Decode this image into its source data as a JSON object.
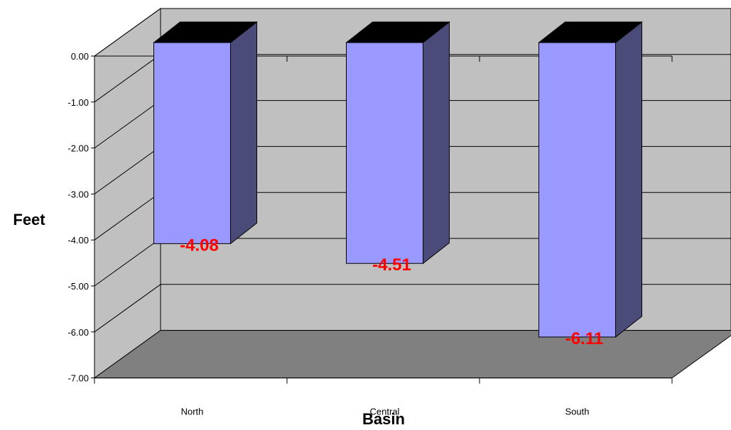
{
  "colors": {
    "plot_back": "#c0c0c0",
    "floor": "#808080",
    "bar_front": "#9999ff",
    "bar_side": "#4b4b7a",
    "bar_top": "#000000",
    "data_label": "#ff0000"
  },
  "chart_data": {
    "type": "bar",
    "style": "3d-column",
    "categories": [
      "North",
      "Central",
      "South"
    ],
    "series": [
      {
        "values": [
          -4.08,
          -4.51,
          -6.11
        ]
      }
    ],
    "data_labels": [
      "-4.08",
      "-4.51",
      "-6.11"
    ],
    "y_ticks": [
      "0.00",
      "-1.00",
      "-2.00",
      "-3.00",
      "-4.00",
      "-5.00",
      "-6.00",
      "-7.00"
    ],
    "title": "",
    "xlabel": "Basin",
    "ylabel": "Feet",
    "ylim": [
      -7,
      0
    ],
    "grid": true,
    "legend": "none"
  }
}
